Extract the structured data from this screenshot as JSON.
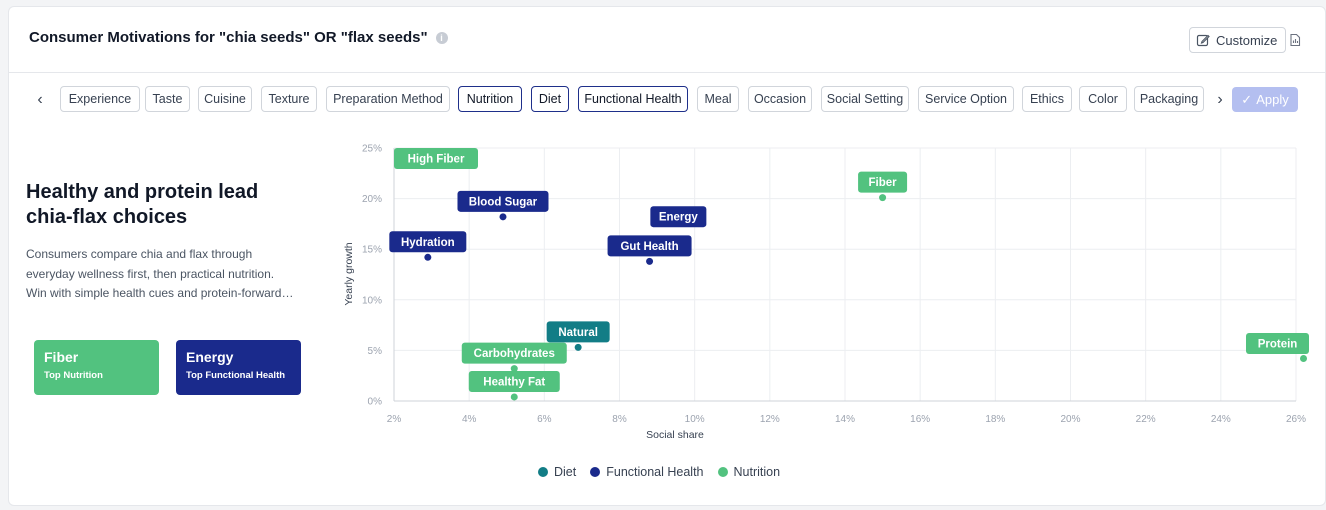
{
  "header": {
    "title": "Consumer Motivations for \"chia seeds\" OR \"flax seeds\"",
    "customize_label": "Customize"
  },
  "filters": {
    "chips": [
      {
        "label": "Experience",
        "selected": false
      },
      {
        "label": "Taste",
        "selected": false
      },
      {
        "label": "Cuisine",
        "selected": false
      },
      {
        "label": "Texture",
        "selected": false
      },
      {
        "label": "Preparation Method",
        "selected": false
      },
      {
        "label": "Nutrition",
        "selected": true
      },
      {
        "label": "Diet",
        "selected": true
      },
      {
        "label": "Functional Health",
        "selected": true
      },
      {
        "label": "Meal",
        "selected": false
      },
      {
        "label": "Occasion",
        "selected": false
      },
      {
        "label": "Social Setting",
        "selected": false
      },
      {
        "label": "Service Option",
        "selected": false
      },
      {
        "label": "Ethics",
        "selected": false
      },
      {
        "label": "Color",
        "selected": false
      },
      {
        "label": "Packaging",
        "selected": false
      }
    ],
    "apply_label": "Apply"
  },
  "insight": {
    "headline_1": "Healthy and protein lead",
    "headline_2": "chia-flax choices",
    "desc_1": "Consumers compare chia and flax through",
    "desc_2": "everyday wellness first, then practical nutrition.",
    "desc_3": "Win with simple health cues and protein-forward messaging.",
    "stats": [
      {
        "value": "Fiber",
        "sub": "Top Nutrition",
        "color": "#52c27f"
      },
      {
        "value": "Energy",
        "sub": "Top Functional Health",
        "color": "#1a2a8c"
      }
    ]
  },
  "colors": {
    "Diet": "#127d86",
    "Functional Health": "#1a2a8c",
    "Nutrition": "#52c27f"
  },
  "chart_data": {
    "type": "scatter",
    "xlabel": "Social share",
    "ylabel": "Yearly growth",
    "xlim": [
      2,
      26
    ],
    "ylim": [
      0,
      25
    ],
    "x_ticks": [
      "2%",
      "4%",
      "6%",
      "8%",
      "10%",
      "12%",
      "14%",
      "16%",
      "18%",
      "20%",
      "22%",
      "24%",
      "26%"
    ],
    "y_ticks": [
      "0%",
      "5%",
      "10%",
      "15%",
      "20%",
      "25%"
    ],
    "grid": true,
    "legend_position": "bottom",
    "legend": [
      "Diet",
      "Functional Health",
      "Nutrition"
    ],
    "points": [
      {
        "label": "High Fiber",
        "group": "Nutrition",
        "x": 2,
        "y": 25
      },
      {
        "label": "Fiber",
        "group": "Nutrition",
        "x": 15.0,
        "y": 20.1
      },
      {
        "label": "Blood Sugar",
        "group": "Functional Health",
        "x": 4.9,
        "y": 18.2
      },
      {
        "label": "Energy",
        "group": "Functional Health",
        "x": 9.3,
        "y": 15.1
      },
      {
        "label": "Gut Health",
        "group": "Functional Health",
        "x": 8.8,
        "y": 13.8
      },
      {
        "label": "Hydration",
        "group": "Functional Health",
        "x": 2.9,
        "y": 14.2
      },
      {
        "label": "Natural",
        "group": "Diet",
        "x": 6.9,
        "y": 5.3
      },
      {
        "label": "Carbohydrates",
        "group": "Nutrition",
        "x": 5.2,
        "y": 3.2
      },
      {
        "label": "Healthy Fat",
        "group": "Nutrition",
        "x": 5.2,
        "y": 0.4
      },
      {
        "label": "Protein",
        "group": "Nutrition",
        "x": 26.2,
        "y": 4.2
      }
    ]
  }
}
